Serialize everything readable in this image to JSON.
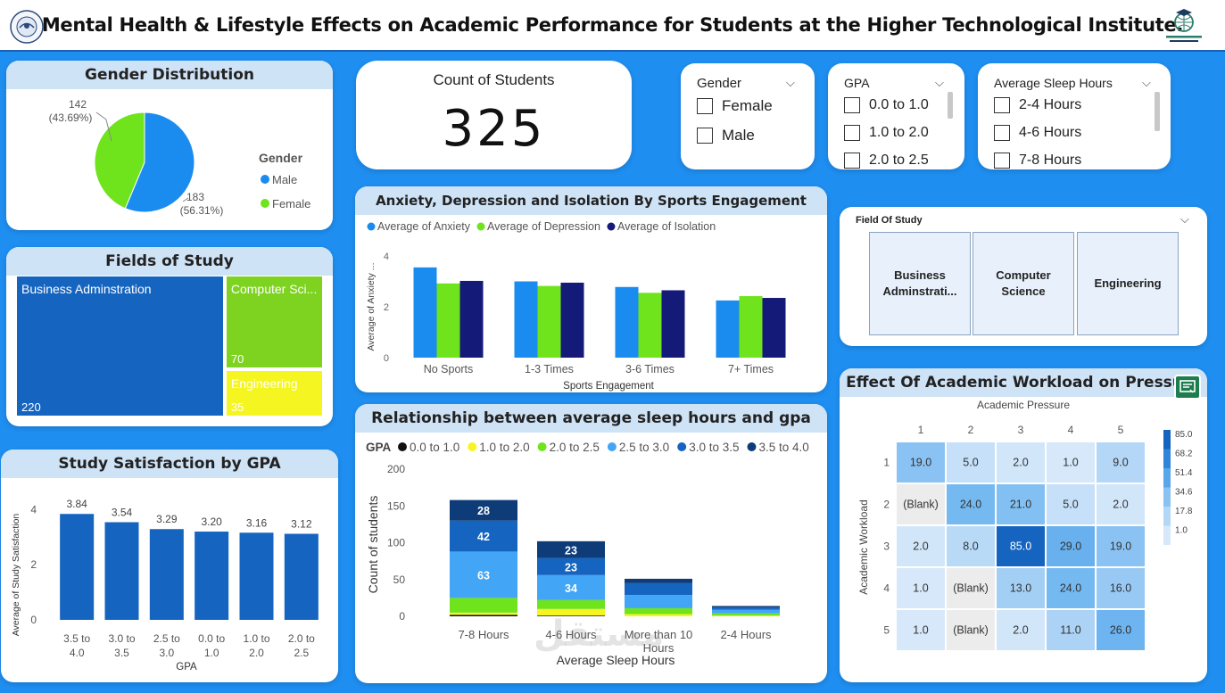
{
  "header": {
    "title": "Mental Health & Lifestyle Effects on Academic Performance for Students at the Higher Technological Institute."
  },
  "gender_card": {
    "title": "Gender Distribution",
    "legend_title": "Gender",
    "male_label": "Male",
    "female_label": "Female",
    "female_count": "142",
    "female_pct": "(43.69%)",
    "male_count": "183",
    "male_pct": "(56.31%)"
  },
  "count_card": {
    "title": "Count of Students",
    "value": "325"
  },
  "slicers": {
    "gender": {
      "title": "Gender",
      "options": [
        "Female",
        "Male"
      ]
    },
    "gpa": {
      "title": "GPA",
      "options": [
        "0.0 to 1.0",
        "1.0 to 2.0",
        "2.0 to 2.5"
      ]
    },
    "sleep": {
      "title": "Average Sleep Hours",
      "options": [
        "2-4 Hours",
        "4-6 Hours",
        "7-8 Hours"
      ]
    }
  },
  "field_slicer": {
    "title": "Field Of Study",
    "options": [
      "Business Adminstrati...",
      "Computer Science",
      "Engineering"
    ]
  },
  "fields_card": {
    "title": "Fields of Study",
    "items": [
      {
        "label": "Business Adminstration",
        "value": "220"
      },
      {
        "label": "Computer Sci...",
        "value": "70"
      },
      {
        "label": "Engineering",
        "value": "35"
      }
    ]
  },
  "sports_card": {
    "title": "Anxiety, Depression and Isolation By Sports Engagement"
  },
  "sleep_card": {
    "title": "Relationship between average sleep hours and gpa"
  },
  "satisfaction_card": {
    "title": "Study Satisfaction by GPA"
  },
  "workload_card": {
    "title": "Effect Of Academic Workload on Pressure"
  },
  "watermark": "مستقل",
  "colors": {
    "male": "#1a8cf0",
    "female": "#6fe31c",
    "anxiety": "#1a8cf0",
    "depression": "#6fe31c",
    "isolation": "#141a78",
    "business": "#1565c0",
    "computer": "#7ed321",
    "engineering": "#f5f522",
    "bar_blue": "#1565c0"
  },
  "chart_data": [
    {
      "type": "pie",
      "title": "Gender Distribution",
      "legend_title": "Gender",
      "categories": [
        "Male",
        "Female"
      ],
      "values": [
        183,
        142
      ],
      "percents": [
        56.31,
        43.69
      ]
    },
    {
      "type": "treemap",
      "title": "Fields of Study",
      "categories": [
        "Business Adminstration",
        "Computer Sci...",
        "Engineering"
      ],
      "values": [
        220,
        70,
        35
      ]
    },
    {
      "type": "bar",
      "title": "Anxiety, Depression and Isolation By Sports Engagement",
      "categories": [
        "No Sports",
        "1-3 Times",
        "3-6 Times",
        "7+ Times"
      ],
      "xlabel": "Sports Engagement",
      "ylabel": "Average of Anxiety ...",
      "ylim": [
        0,
        4
      ],
      "yticks": [
        0,
        2,
        4
      ],
      "legend_position": "top",
      "series": [
        {
          "name": "Average of Anxiety",
          "values": [
            3.55,
            3.0,
            2.78,
            2.25
          ]
        },
        {
          "name": "Average of Depression",
          "values": [
            2.92,
            2.82,
            2.55,
            2.42
          ]
        },
        {
          "name": "Average of Isolation",
          "values": [
            3.02,
            2.95,
            2.65,
            2.35
          ]
        }
      ]
    },
    {
      "type": "bar",
      "stacked": true,
      "title": "Relationship between average sleep hours and gpa",
      "categories": [
        "7-8 Hours",
        "4-6 Hours",
        "More than 10 Hours",
        "2-4 Hours"
      ],
      "xlabel": "Average Sleep Hours",
      "ylabel": "Count of students",
      "ylim": [
        0,
        200
      ],
      "yticks": [
        0,
        50,
        100,
        150,
        200
      ],
      "legend_title": "GPA",
      "legend_position": "top",
      "series": [
        {
          "name": "0.0 to 1.0",
          "color": "#111111",
          "values": [
            2,
            1,
            0,
            0
          ]
        },
        {
          "name": "1.0 to 2.0",
          "color": "#f5f522",
          "values": [
            3,
            9,
            3,
            1
          ]
        },
        {
          "name": "2.0 to 2.5",
          "color": "#6fe31c",
          "values": [
            20,
            12,
            8,
            3
          ]
        },
        {
          "name": "2.5 to 3.0",
          "color": "#42a5f5",
          "values": [
            63,
            34,
            18,
            5
          ]
        },
        {
          "name": "3.0 to 3.5",
          "color": "#1565c0",
          "values": [
            42,
            23,
            16,
            3
          ]
        },
        {
          "name": "3.5 to 4.0",
          "color": "#0d3c78",
          "values": [
            28,
            23,
            6,
            2
          ]
        }
      ],
      "data_labels": [
        {
          "category": "7-8 Hours",
          "series": "2.5 to 3.0",
          "text": "63"
        },
        {
          "category": "7-8 Hours",
          "series": "3.0 to 3.5",
          "text": "42"
        },
        {
          "category": "7-8 Hours",
          "series": "3.5 to 4.0",
          "text": "28"
        },
        {
          "category": "4-6 Hours",
          "series": "2.5 to 3.0",
          "text": "34"
        },
        {
          "category": "4-6 Hours",
          "series": "3.0 to 3.5",
          "text": "23"
        },
        {
          "category": "4-6 Hours",
          "series": "3.5 to 4.0",
          "text": "23"
        }
      ]
    },
    {
      "type": "bar",
      "title": "Study Satisfaction by GPA",
      "categories": [
        "3.5 to 4.0",
        "3.0 to 3.5",
        "2.5 to 3.0",
        "0.0 to 1.0",
        "1.0 to 2.0",
        "2.0 to 2.5"
      ],
      "values": [
        3.84,
        3.54,
        3.29,
        3.2,
        3.16,
        3.12
      ],
      "value_labels": [
        "3.84",
        "3.54",
        "3.29",
        "3.20",
        "3.16",
        "3.12"
      ],
      "xlabel": "GPA",
      "ylabel": "Average of Study Satisfaction",
      "ylim": [
        0,
        4.3
      ],
      "yticks": [
        0,
        2,
        4
      ]
    },
    {
      "type": "heatmap",
      "title": "Effect Of Academic Workload on Pressure",
      "xlabel": "Academic Pressure",
      "ylabel": "Academic Workload",
      "x": [
        "1",
        "2",
        "3",
        "4",
        "5"
      ],
      "y": [
        "1",
        "2",
        "3",
        "4",
        "5"
      ],
      "values": [
        [
          19.0,
          5.0,
          2.0,
          1.0,
          9.0
        ],
        [
          null,
          24.0,
          21.0,
          5.0,
          2.0
        ],
        [
          2.0,
          8.0,
          85.0,
          29.0,
          19.0
        ],
        [
          1.0,
          null,
          13.0,
          24.0,
          16.0
        ],
        [
          1.0,
          null,
          2.0,
          11.0,
          26.0
        ]
      ],
      "labels": [
        [
          "19.0",
          "5.0",
          "2.0",
          "1.0",
          "9.0"
        ],
        [
          "(Blank)",
          "24.0",
          "21.0",
          "5.0",
          "2.0"
        ],
        [
          "2.0",
          "8.0",
          "85.0",
          "29.0",
          "19.0"
        ],
        [
          "1.0",
          "(Blank)",
          "13.0",
          "24.0",
          "16.0"
        ],
        [
          "1.0",
          "(Blank)",
          "2.0",
          "11.0",
          "26.0"
        ]
      ],
      "scale_ticks": [
        "85.0",
        "68.2",
        "51.4",
        "34.6",
        "17.8",
        "1.0"
      ]
    }
  ]
}
